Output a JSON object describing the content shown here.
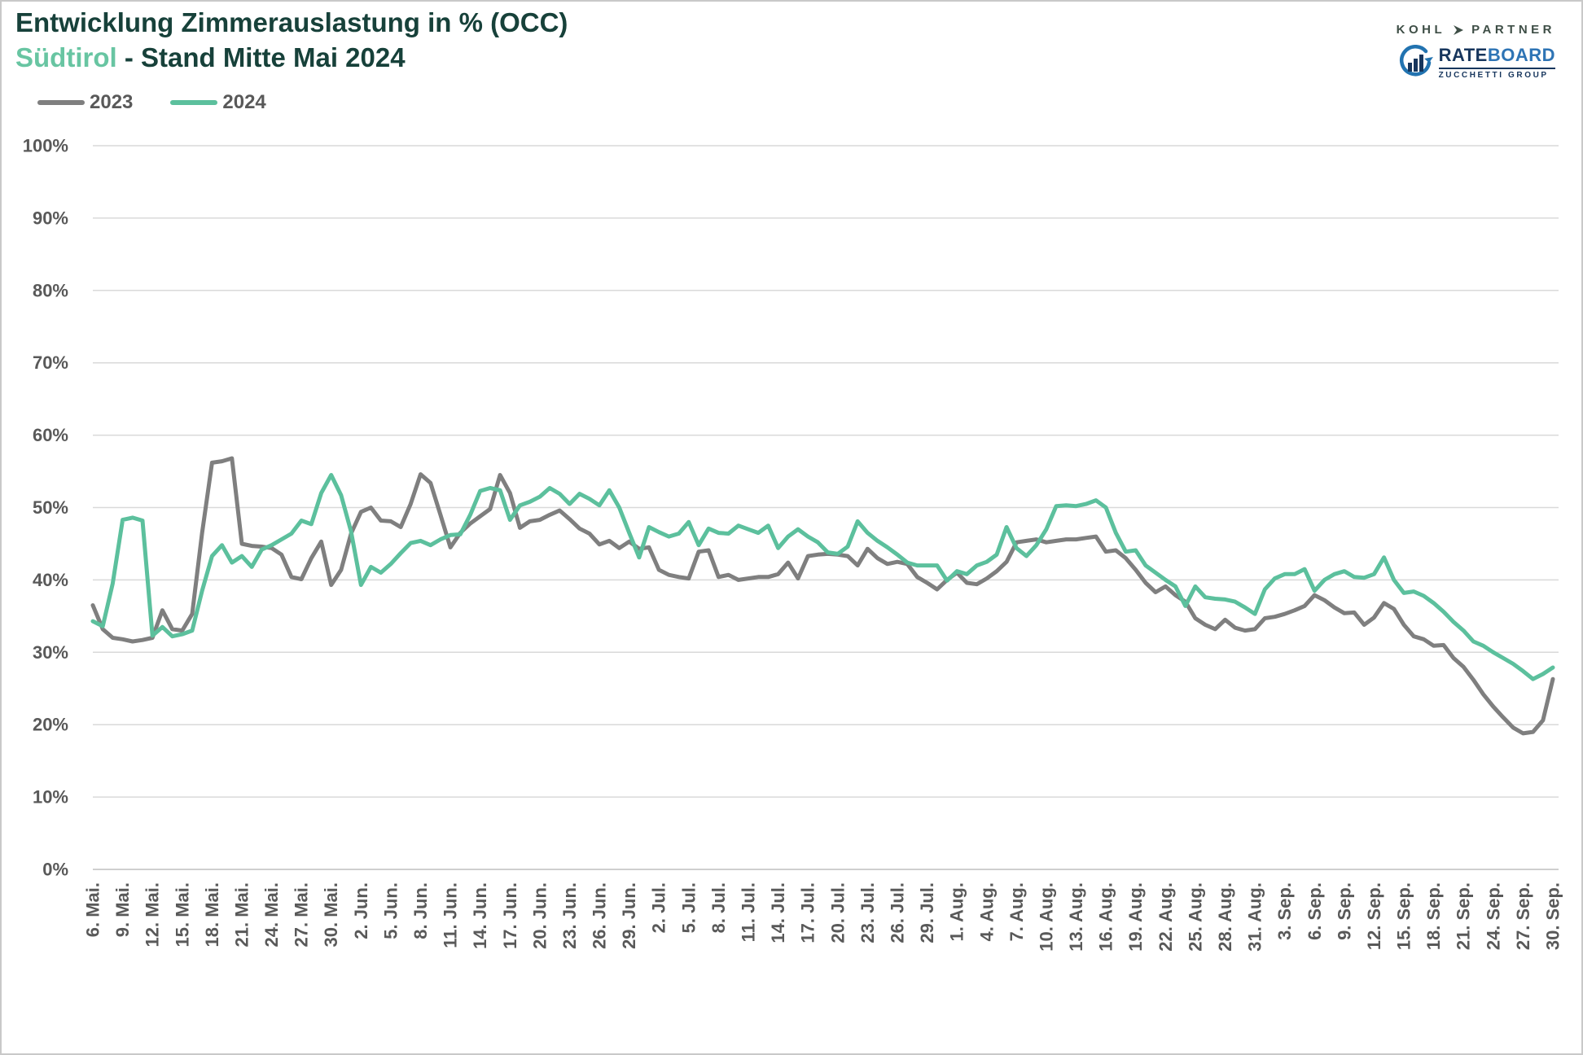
{
  "header": {
    "title": "Entwicklung Zimmerauslastung in % (OCC)",
    "subtitle_accent": "Südtirol",
    "subtitle_rest": " - Stand Mitte Mai 2024"
  },
  "legend": [
    {
      "label": "2023",
      "color": "#7F7F7F"
    },
    {
      "label": "2024",
      "color": "#5CC09D"
    }
  ],
  "logos": {
    "kohl_partner": {
      "left": "KOHL",
      "right": "PARTNER"
    },
    "rateboard": {
      "rate": "RATE",
      "board": "BOARD",
      "group": "ZUCCHETTI GROUP"
    }
  },
  "colors": {
    "title": "#17413A",
    "accent": "#68C5A2",
    "axis_text": "#595959",
    "gridline": "#D9D9D9",
    "axis_line": "#BFBFBF"
  },
  "chart_data": {
    "type": "line",
    "title": "Entwicklung Zimmerauslastung in % (OCC) – Südtirol - Stand Mitte Mai 2024",
    "xlabel": "",
    "ylabel": "",
    "ylim": [
      0,
      100
    ],
    "grid": "horizontal",
    "legend_position": "top-left",
    "points_per_series": 148,
    "x_tick_every_days": 3,
    "y_tick_labels": [
      "0%",
      "10%",
      "20%",
      "30%",
      "40%",
      "50%",
      "60%",
      "70%",
      "80%",
      "90%",
      "100%"
    ],
    "x_tick_labels": [
      "6. Mai.",
      "9. Mai.",
      "12. Mai.",
      "15. Mai.",
      "18. Mai.",
      "21. Mai.",
      "24. Mai.",
      "27. Mai.",
      "30. Mai.",
      "2. Jun.",
      "5. Jun.",
      "8. Jun.",
      "11. Jun.",
      "14. Jun.",
      "17. Jun.",
      "20. Jun.",
      "23. Jun.",
      "26. Jun.",
      "29. Jun.",
      "2. Jul.",
      "5. Jul.",
      "8. Jul.",
      "11. Jul.",
      "14. Jul.",
      "17. Jul.",
      "20. Jul.",
      "23. Jul.",
      "26. Jul.",
      "29. Jul.",
      "1. Aug.",
      "4. Aug.",
      "7. Aug.",
      "10. Aug.",
      "13. Aug.",
      "16. Aug.",
      "19. Aug.",
      "22. Aug.",
      "25. Aug.",
      "28. Aug.",
      "31. Aug.",
      "3. Sep.",
      "6. Sep.",
      "9. Sep.",
      "12. Sep.",
      "15. Sep.",
      "18. Sep.",
      "21. Sep.",
      "24. Sep.",
      "27. Sep.",
      "30. Sep."
    ],
    "series": [
      {
        "name": "2023",
        "color": "#7F7F7F",
        "values": [
          36.5,
          33.2,
          32,
          31.8,
          31.5,
          31.7,
          32,
          35.8,
          33.2,
          33,
          35.3,
          46.5,
          56.2,
          56.4,
          56.8,
          45,
          44.7,
          44.6,
          44.4,
          43.5,
          40.4,
          40.1,
          43,
          45.3,
          39.3,
          41.4,
          46.4,
          49.4,
          50,
          48.2,
          48.1,
          47.3,
          50.5,
          54.6,
          53.4,
          49,
          44.5,
          46.5,
          47.8,
          48.8,
          49.8,
          54.5,
          52,
          47.2,
          48.1,
          48.3,
          49,
          49.6,
          48.4,
          47.1,
          46.4,
          44.9,
          45.4,
          44.4,
          45.3,
          44.3,
          44.5,
          41.4,
          40.7,
          40.4,
          40.2,
          43.9,
          44.1,
          40.4,
          40.7,
          40,
          40.2,
          40.4,
          40.4,
          40.8,
          42.4,
          40.2,
          43.3,
          43.5,
          43.6,
          43.5,
          43.3,
          42,
          44.3,
          43,
          42.2,
          42.5,
          42.2,
          40.4,
          39.6,
          38.7,
          40,
          41,
          39.6,
          39.4,
          40.2,
          41.2,
          42.5,
          45.2,
          45.4,
          45.6,
          45.2,
          45.4,
          45.6,
          45.6,
          45.8,
          46,
          43.9,
          44.1,
          43,
          41.4,
          39.6,
          38.3,
          39.1,
          37.9,
          37,
          34.7,
          33.8,
          33.2,
          34.5,
          33.4,
          33,
          33.2,
          34.7,
          34.9,
          35.3,
          35.8,
          36.4,
          37.9,
          37.2,
          36.2,
          35.4,
          35.5,
          33.8,
          34.8,
          36.8,
          36,
          33.8,
          32.2,
          31.8,
          30.9,
          31,
          29.2,
          28,
          26.2,
          24.2,
          22.5,
          21,
          19.6,
          18.8,
          19,
          20.6,
          26.3
        ]
      },
      {
        "name": "2024",
        "color": "#5CC09D",
        "values": [
          34.3,
          33.6,
          39.5,
          48.3,
          48.6,
          48.2,
          32.3,
          33.5,
          32.2,
          32.5,
          33,
          38.5,
          43.3,
          44.8,
          42.4,
          43.3,
          41.8,
          44.2,
          44.8,
          45.6,
          46.4,
          48.2,
          47.7,
          52,
          54.5,
          51.7,
          46.7,
          39.3,
          41.8,
          41,
          42.2,
          43.7,
          45.1,
          45.4,
          44.8,
          45.6,
          46.2,
          46.3,
          49,
          52.3,
          52.7,
          52.4,
          48.3,
          50.3,
          50.8,
          51.5,
          52.7,
          51.9,
          50.5,
          51.9,
          51.2,
          50.3,
          52.4,
          50,
          46.5,
          43.1,
          47.3,
          46.6,
          46,
          46.4,
          48,
          44.8,
          47.1,
          46.5,
          46.4,
          47.5,
          47,
          46.5,
          47.5,
          44.4,
          46,
          47,
          46,
          45.2,
          43.8,
          43.6,
          44.6,
          48.1,
          46.5,
          45.4,
          44.5,
          43.5,
          42.4,
          42,
          42,
          42,
          39.9,
          41.2,
          40.8,
          42,
          42.5,
          43.5,
          47.3,
          44.4,
          43.3,
          44.8,
          47,
          50.2,
          50.3,
          50.2,
          50.5,
          51,
          50,
          46.5,
          43.9,
          44.1,
          42,
          41,
          40,
          39.1,
          36.4,
          39.1,
          37.6,
          37.4,
          37.3,
          37,
          36.2,
          35.3,
          38.7,
          40.2,
          40.8,
          40.8,
          41.5,
          38.5,
          40,
          40.8,
          41.2,
          40.4,
          40.3,
          40.8,
          43.1,
          40,
          38.2,
          38.4,
          37.8,
          36.8,
          35.6,
          34.2,
          33,
          31.5,
          30.9,
          30,
          29.2,
          28.4,
          27.4,
          26.3,
          27,
          27.9
        ]
      }
    ]
  }
}
